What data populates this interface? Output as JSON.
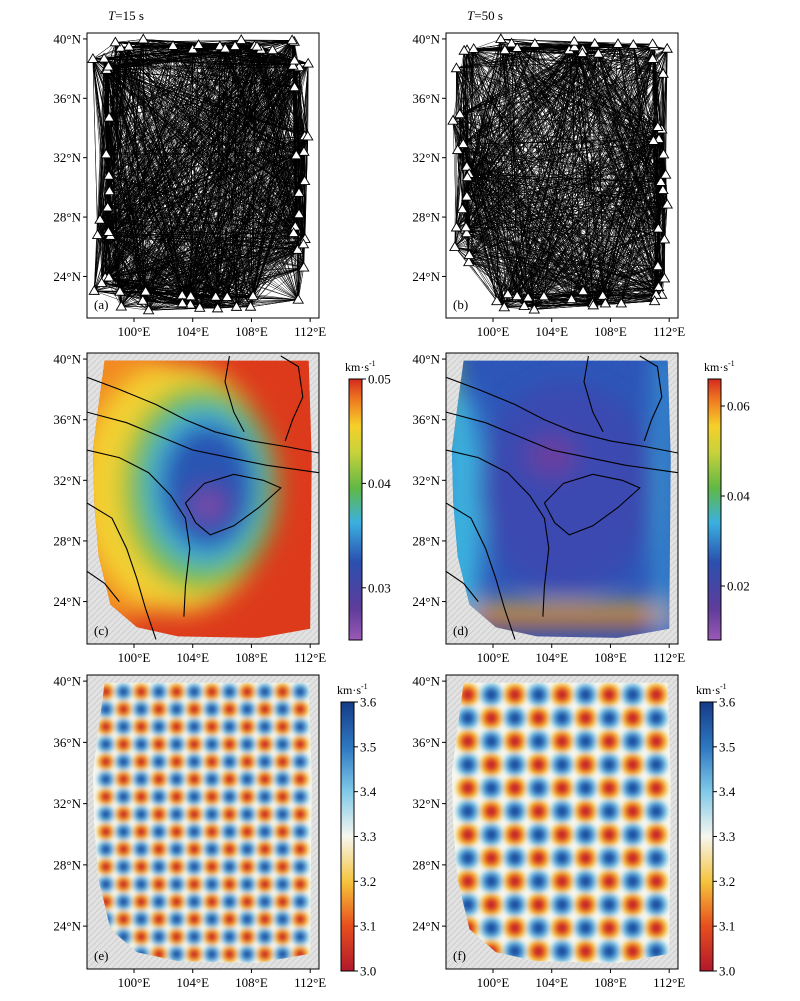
{
  "figure": {
    "period_label_prefix": "T",
    "periods": [
      "=15 s",
      "=50 s"
    ]
  },
  "axes": {
    "lat_labels": [
      "40°N",
      "36°N",
      "32°N",
      "28°N",
      "24°N"
    ],
    "lon_labels": [
      "100°E",
      "104°E",
      "108°E",
      "112°E"
    ],
    "lat_values": [
      40,
      36,
      32,
      28,
      24
    ],
    "lon_values": [
      100,
      104,
      108,
      112
    ],
    "lat_range": [
      21.2,
      40.4
    ],
    "lon_range": [
      96.8,
      112.6
    ]
  },
  "colorbars": {
    "unit": "km·s",
    "unit_exp": "-1",
    "c": {
      "ticks": [
        "0.05",
        "0.04",
        "0.03"
      ],
      "tick_values": [
        0.05,
        0.04,
        0.03
      ],
      "range": [
        0.025,
        0.05
      ],
      "palette": "rainbow"
    },
    "d": {
      "ticks": [
        "0.06",
        "0.04",
        "0.02"
      ],
      "tick_values": [
        0.06,
        0.04,
        0.02
      ],
      "range": [
        0.008,
        0.066
      ],
      "palette": "rainbow"
    },
    "e": {
      "ticks": [
        "3.6",
        "3.5",
        "3.4",
        "3.3",
        "3.2",
        "3.1",
        "3.0"
      ],
      "tick_values": [
        3.6,
        3.5,
        3.4,
        3.3,
        3.2,
        3.1,
        3.0
      ],
      "range": [
        3.0,
        3.6
      ],
      "palette": "redwhiteblue"
    },
    "f": {
      "ticks": [
        "3.6",
        "3.5",
        "3.4",
        "3.3",
        "3.2",
        "3.1",
        "3.0"
      ],
      "tick_values": [
        3.6,
        3.5,
        3.4,
        3.3,
        3.2,
        3.1,
        3.0
      ],
      "range": [
        3.0,
        3.6
      ],
      "palette": "redwhiteblue"
    }
  },
  "panels": [
    {
      "id": "a",
      "label": "(a)",
      "type": "ray-paths"
    },
    {
      "id": "b",
      "label": "(b)",
      "type": "ray-paths"
    },
    {
      "id": "c",
      "label": "(c)",
      "type": "resolution-map"
    },
    {
      "id": "d",
      "label": "(d)",
      "type": "resolution-map"
    },
    {
      "id": "e",
      "label": "(e)",
      "type": "checkerboard"
    },
    {
      "id": "f",
      "label": "(f)",
      "type": "checkerboard"
    }
  ],
  "chart_data": {
    "type": "heatmap",
    "colors": {
      "land_shading": "#d9d9d9",
      "fault": "#000000",
      "station": "#ffffff"
    }
  }
}
